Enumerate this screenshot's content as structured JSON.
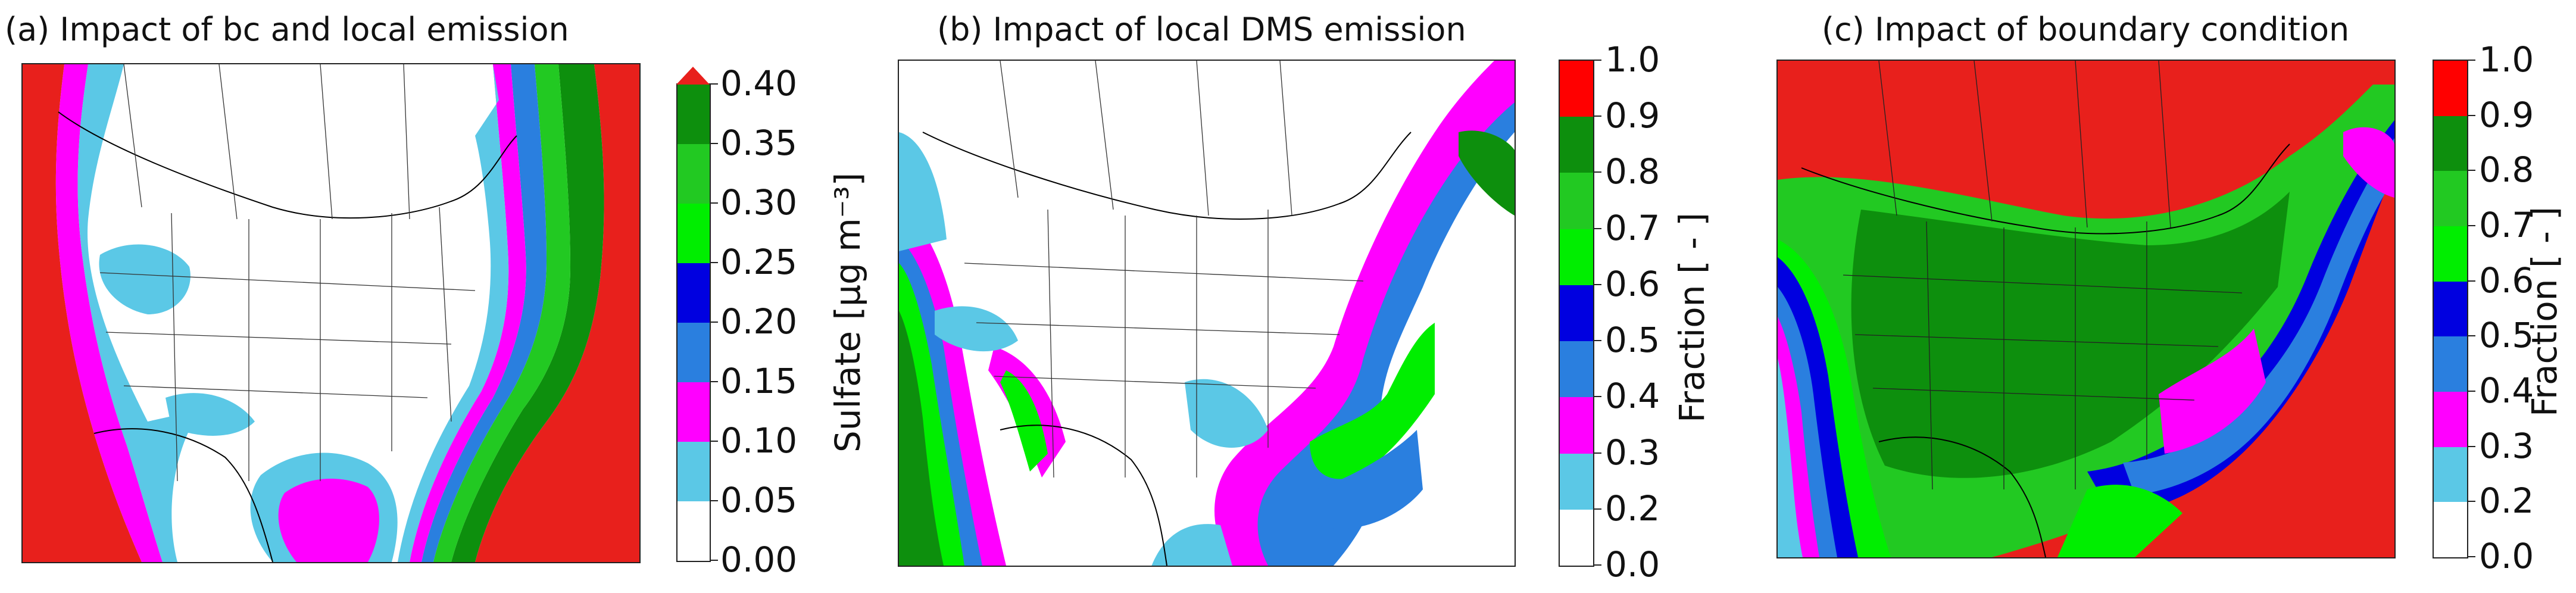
{
  "panels": [
    {
      "id": "a",
      "title": "(a) Impact of bc and local emission",
      "colorbar": {
        "label": "Sulfate [μg m⁻³]",
        "ticks": [
          "0.00",
          "0.05",
          "0.10",
          "0.15",
          "0.20",
          "0.25",
          "0.30",
          "0.35",
          "0.40"
        ],
        "colors": [
          "#ffffff",
          "#5bc8e6",
          "#ff00ff",
          "#2a7fdf",
          "#0000e0",
          "#00ee00",
          "#22c922",
          "#0d8f0d"
        ],
        "extend_max_color": "#e8201c"
      }
    },
    {
      "id": "b",
      "title": "(b) Impact of local DMS emission",
      "colorbar": {
        "label": "Fraction [ - ]",
        "ticks": [
          "0.0",
          "0.2",
          "0.3",
          "0.4",
          "0.5",
          "0.6",
          "0.7",
          "0.8",
          "0.9",
          "1.0"
        ],
        "colors": [
          "#ffffff",
          "#5bc8e6",
          "#ff00ff",
          "#2a7fdf",
          "#0000e0",
          "#00ee00",
          "#22c922",
          "#0d8f0d",
          "#ff0000"
        ]
      }
    },
    {
      "id": "c",
      "title": "(c) Impact of boundary condition",
      "colorbar": {
        "label": "Fraction [ - ]",
        "ticks": [
          "0.0",
          "0.2",
          "0.3",
          "0.4",
          "0.5",
          "0.6",
          "0.7",
          "0.8",
          "0.9",
          "1.0"
        ],
        "colors": [
          "#ffffff",
          "#5bc8e6",
          "#ff00ff",
          "#2a7fdf",
          "#0000e0",
          "#00ee00",
          "#22c922",
          "#0d8f0d",
          "#ff0000"
        ]
      }
    }
  ]
}
